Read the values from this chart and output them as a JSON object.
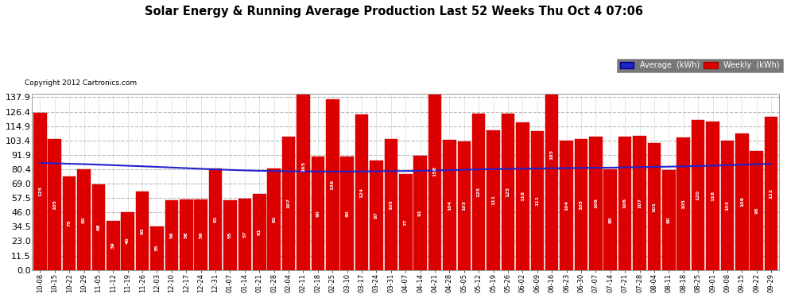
{
  "title": "Solar Energy & Running Average Production Last 52 Weeks Thu Oct 4 07:06",
  "copyright": "Copyright 2012 Cartronics.com",
  "bar_color": "#dd0000",
  "bar_edge_color": "#cc0000",
  "avg_line_color": "#2222cc",
  "background_color": "#ffffff",
  "plot_bg_color": "#ffffff",
  "grid_color": "#bbbbbb",
  "ytick_labels": [
    "0.0",
    "11.5",
    "23.0",
    "34.5",
    "46.0",
    "57.5",
    "69.0",
    "80.4",
    "91.9",
    "103.4",
    "114.9",
    "126.4",
    "137.9"
  ],
  "ytick_values": [
    0.0,
    11.5,
    23.0,
    34.5,
    46.0,
    57.5,
    69.0,
    80.4,
    91.9,
    103.4,
    114.9,
    126.4,
    137.9
  ],
  "weekly_values": [
    125.45,
    104.71,
    75.0,
    80.31,
    68.45,
    38.85,
    46.37,
    62.81,
    34.96,
    55.82,
    56.26,
    56.07,
    81.22,
    55.4,
    56.87,
    60.92,
    80.76,
    106.58,
    165.26,
    90.35,
    136.04,
    90.45,
    124.04,
    87.35,
    104.75,
    76.52,
    90.89,
    157.9,
    103.6,
    102.51,
    125.09,
    111.46,
    125.09,
    118.01,
    111.03,
    184.54,
    103.5,
    104.65,
    106.5,
    80.34,
    106.21,
    107.09,
    101.09,
    80.01,
    105.49,
    119.84,
    118.5,
    103.4,
    109.1,
    95.3,
    122.3
  ],
  "avg_values": [
    85.5,
    85.2,
    84.8,
    84.5,
    84.1,
    83.7,
    83.2,
    82.8,
    82.3,
    81.8,
    81.3,
    80.8,
    80.3,
    79.9,
    79.5,
    79.2,
    79.0,
    78.8,
    78.7,
    78.6,
    78.6,
    78.6,
    78.7,
    78.8,
    78.9,
    79.0,
    79.2,
    79.4,
    79.7,
    80.0,
    80.3,
    80.5,
    80.7,
    80.9,
    81.0,
    81.2,
    81.3,
    81.5,
    81.6,
    81.7,
    81.9,
    82.1,
    82.3,
    82.5,
    82.7,
    83.0,
    83.3,
    83.6,
    84.0,
    84.4,
    84.8
  ],
  "x_labels": [
    "10-08",
    "10-15",
    "10-22",
    "10-29",
    "11-05",
    "11-12",
    "11-19",
    "11-26",
    "12-03",
    "12-10",
    "12-17",
    "12-24",
    "12-31",
    "01-07",
    "01-14",
    "01-21",
    "01-28",
    "02-04",
    "02-11",
    "02-18",
    "02-25",
    "03-10",
    "03-17",
    "03-24",
    "03-31",
    "04-07",
    "04-14",
    "04-21",
    "04-28",
    "05-05",
    "05-12",
    "05-19",
    "05-26",
    "06-02",
    "06-09",
    "06-16",
    "06-23",
    "06-30",
    "07-07",
    "07-14",
    "07-21",
    "07-28",
    "08-04",
    "08-11",
    "08-18",
    "08-25",
    "09-01",
    "09-08",
    "09-15",
    "09-22",
    "09-29"
  ]
}
